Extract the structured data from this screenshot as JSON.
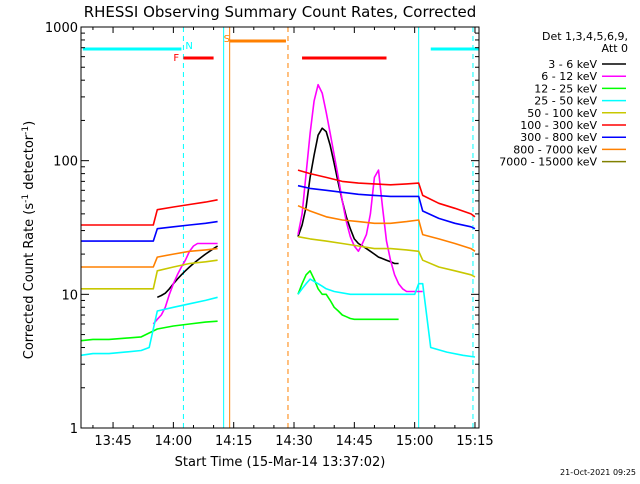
{
  "chart_data": {
    "type": "line",
    "title": "RHESSI Observing Summary Count Rates, Corrected",
    "xlabel": "Start Time (15-Mar-14 13:37:02)",
    "ylabel_main": "Corrected Count Rate (s",
    "ylabel_sup1": "-1",
    "ylabel_mid": " detector",
    "ylabel_sup2": "-1",
    "ylabel_end": ")",
    "y_scale": "log",
    "ylim": [
      1,
      1000
    ],
    "xlim": [
      37.03,
      136.0
    ],
    "x_units": "minutes after 13:00 UT",
    "x_ticks": [
      {
        "value": 45,
        "label": "13:45"
      },
      {
        "value": 60,
        "label": "14:00"
      },
      {
        "value": 75,
        "label": "14:15"
      },
      {
        "value": 90,
        "label": "14:30"
      },
      {
        "value": 105,
        "label": "14:45"
      },
      {
        "value": 120,
        "label": "15:00"
      },
      {
        "value": 135,
        "label": "15:15"
      }
    ],
    "y_ticks": [
      {
        "value": 1,
        "label": "1"
      },
      {
        "value": 10,
        "label": "10"
      },
      {
        "value": 100,
        "label": "100"
      },
      {
        "value": 1000,
        "label": "1000"
      }
    ],
    "legend": {
      "position": "right",
      "header_line1": "Det 1,3,4,5,6,9,",
      "header_line2": "Att 0"
    },
    "series": [
      {
        "name": "3 - 6 keV",
        "color": "#000000",
        "points": [
          [
            56,
            9.5
          ],
          [
            57,
            9.8
          ],
          [
            58,
            10.2
          ],
          [
            59,
            11
          ],
          [
            60,
            12
          ],
          [
            61,
            13
          ],
          [
            62,
            14
          ],
          [
            63,
            15
          ],
          [
            64,
            16
          ],
          [
            65,
            17
          ],
          [
            66,
            18
          ],
          [
            67,
            19
          ],
          [
            68,
            20
          ],
          [
            69,
            21
          ],
          [
            70,
            22
          ],
          [
            71,
            23
          ],
          [
            91,
            27
          ],
          [
            92,
            33
          ],
          [
            93,
            45
          ],
          [
            94,
            75
          ],
          [
            95,
            110
          ],
          [
            96,
            155
          ],
          [
            97,
            175
          ],
          [
            98,
            165
          ],
          [
            99,
            130
          ],
          [
            100,
            95
          ],
          [
            101,
            68
          ],
          [
            102,
            50
          ],
          [
            103,
            38
          ],
          [
            104,
            31
          ],
          [
            105,
            26
          ],
          [
            106,
            24
          ],
          [
            107,
            23
          ],
          [
            108,
            22
          ],
          [
            109,
            21
          ],
          [
            110,
            20
          ],
          [
            111,
            19
          ],
          [
            112,
            18.5
          ],
          [
            113,
            18
          ],
          [
            114,
            17.5
          ],
          [
            115,
            17
          ],
          [
            116,
            17
          ]
        ]
      },
      {
        "name": "6 - 12 keV",
        "color": "#ff00ff",
        "points": [
          [
            55,
            6
          ],
          [
            56,
            6.5
          ],
          [
            57,
            7
          ],
          [
            58,
            8
          ],
          [
            59,
            10
          ],
          [
            60,
            12
          ],
          [
            61,
            14
          ],
          [
            62,
            16
          ],
          [
            63,
            18
          ],
          [
            64,
            21
          ],
          [
            65,
            23
          ],
          [
            66,
            24
          ],
          [
            67,
            24
          ],
          [
            68,
            24
          ],
          [
            69,
            24
          ],
          [
            70,
            24
          ],
          [
            71,
            24
          ],
          [
            91,
            28
          ],
          [
            92,
            40
          ],
          [
            93,
            80
          ],
          [
            94,
            160
          ],
          [
            95,
            280
          ],
          [
            96,
            370
          ],
          [
            97,
            320
          ],
          [
            98,
            230
          ],
          [
            99,
            160
          ],
          [
            100,
            110
          ],
          [
            101,
            75
          ],
          [
            102,
            50
          ],
          [
            103,
            35
          ],
          [
            104,
            27
          ],
          [
            105,
            23
          ],
          [
            106,
            21
          ],
          [
            107,
            24
          ],
          [
            108,
            28
          ],
          [
            109,
            40
          ],
          [
            110,
            75
          ],
          [
            111,
            85
          ],
          [
            112,
            45
          ],
          [
            113,
            25
          ],
          [
            114,
            18
          ],
          [
            115,
            14
          ],
          [
            116,
            12
          ],
          [
            117,
            11
          ],
          [
            118,
            10.5
          ],
          [
            119,
            10.5
          ],
          [
            120,
            10.5
          ],
          [
            121,
            10.5
          ],
          [
            122,
            10.5
          ]
        ]
      },
      {
        "name": "12 - 25 keV",
        "color": "#00ff00",
        "points": [
          [
            37,
            4.5
          ],
          [
            40,
            4.6
          ],
          [
            44,
            4.6
          ],
          [
            48,
            4.7
          ],
          [
            52,
            4.8
          ],
          [
            56,
            5.5
          ],
          [
            60,
            5.8
          ],
          [
            64,
            6.0
          ],
          [
            68,
            6.2
          ],
          [
            71,
            6.3
          ],
          [
            91,
            10
          ],
          [
            92,
            12
          ],
          [
            93,
            14
          ],
          [
            94,
            15
          ],
          [
            95,
            13
          ],
          [
            96,
            11
          ],
          [
            97,
            10
          ],
          [
            98,
            10
          ],
          [
            99,
            9
          ],
          [
            100,
            8
          ],
          [
            101,
            7.5
          ],
          [
            102,
            7
          ],
          [
            103,
            6.8
          ],
          [
            104,
            6.6
          ],
          [
            105,
            6.5
          ],
          [
            106,
            6.5
          ],
          [
            107,
            6.5
          ],
          [
            108,
            6.5
          ],
          [
            109,
            6.5
          ],
          [
            110,
            6.5
          ],
          [
            111,
            6.5
          ],
          [
            112,
            6.5
          ],
          [
            113,
            6.5
          ],
          [
            114,
            6.5
          ],
          [
            115,
            6.5
          ],
          [
            116,
            6.5
          ]
        ]
      },
      {
        "name": "25 - 50 keV",
        "color": "#00ffff",
        "points": [
          [
            37,
            3.5
          ],
          [
            40,
            3.6
          ],
          [
            44,
            3.6
          ],
          [
            48,
            3.7
          ],
          [
            52,
            3.8
          ],
          [
            54,
            4.0
          ],
          [
            56,
            7.5
          ],
          [
            60,
            8
          ],
          [
            64,
            8.5
          ],
          [
            68,
            9
          ],
          [
            71,
            9.5
          ],
          [
            91,
            10
          ],
          [
            92,
            11
          ],
          [
            93,
            12
          ],
          [
            94,
            13
          ],
          [
            95,
            12.5
          ],
          [
            96,
            12
          ],
          [
            97,
            11.5
          ],
          [
            98,
            11
          ],
          [
            100,
            10.5
          ],
          [
            104,
            10
          ],
          [
            108,
            10
          ],
          [
            112,
            10
          ],
          [
            116,
            10
          ],
          [
            119,
            10
          ],
          [
            120,
            10
          ],
          [
            121,
            12
          ],
          [
            122,
            12
          ],
          [
            124,
            4
          ],
          [
            128,
            3.7
          ],
          [
            132,
            3.5
          ],
          [
            135,
            3.4
          ]
        ]
      },
      {
        "name": "50 - 100 keV",
        "color": "#c8c800",
        "points": [
          [
            37,
            11
          ],
          [
            40,
            11
          ],
          [
            44,
            11
          ],
          [
            48,
            11
          ],
          [
            52,
            11
          ],
          [
            55,
            11
          ],
          [
            56,
            15
          ],
          [
            60,
            16
          ],
          [
            64,
            17
          ],
          [
            68,
            17.5
          ],
          [
            71,
            18
          ],
          [
            91,
            27
          ],
          [
            94,
            26
          ],
          [
            98,
            25
          ],
          [
            102,
            24
          ],
          [
            106,
            23
          ],
          [
            110,
            22
          ],
          [
            114,
            22
          ],
          [
            118,
            21.5
          ],
          [
            121,
            21
          ],
          [
            122,
            18
          ],
          [
            126,
            16
          ],
          [
            130,
            15
          ],
          [
            134,
            14
          ],
          [
            135,
            13.5
          ]
        ]
      },
      {
        "name": "100 - 300 keV",
        "color": "#ff0000",
        "points": [
          [
            37,
            33
          ],
          [
            40,
            33
          ],
          [
            44,
            33
          ],
          [
            48,
            33
          ],
          [
            52,
            33
          ],
          [
            55,
            33
          ],
          [
            56,
            43
          ],
          [
            60,
            45
          ],
          [
            64,
            47
          ],
          [
            68,
            49
          ],
          [
            71,
            51
          ],
          [
            91,
            85
          ],
          [
            94,
            80
          ],
          [
            98,
            75
          ],
          [
            102,
            70
          ],
          [
            106,
            68
          ],
          [
            110,
            67
          ],
          [
            114,
            66
          ],
          [
            118,
            67
          ],
          [
            121,
            68
          ],
          [
            122,
            55
          ],
          [
            126,
            48
          ],
          [
            130,
            44
          ],
          [
            134,
            40
          ],
          [
            135,
            38
          ]
        ]
      },
      {
        "name": "300 - 800 keV",
        "color": "#0000ff",
        "points": [
          [
            37,
            25
          ],
          [
            40,
            25
          ],
          [
            44,
            25
          ],
          [
            48,
            25
          ],
          [
            52,
            25
          ],
          [
            55,
            25
          ],
          [
            56,
            31
          ],
          [
            60,
            32
          ],
          [
            64,
            33
          ],
          [
            68,
            34
          ],
          [
            71,
            35
          ],
          [
            91,
            65
          ],
          [
            94,
            62
          ],
          [
            98,
            60
          ],
          [
            102,
            58
          ],
          [
            106,
            56
          ],
          [
            110,
            55
          ],
          [
            114,
            54
          ],
          [
            118,
            54
          ],
          [
            121,
            54
          ],
          [
            122,
            42
          ],
          [
            126,
            37
          ],
          [
            130,
            34
          ],
          [
            134,
            32
          ],
          [
            135,
            31
          ]
        ]
      },
      {
        "name": "800 - 7000 keV",
        "color": "#ff8000",
        "points": [
          [
            37,
            16
          ],
          [
            40,
            16
          ],
          [
            44,
            16
          ],
          [
            48,
            16
          ],
          [
            52,
            16
          ],
          [
            55,
            16
          ],
          [
            56,
            19
          ],
          [
            60,
            20
          ],
          [
            64,
            21
          ],
          [
            68,
            21.5
          ],
          [
            71,
            22
          ],
          [
            91,
            46
          ],
          [
            94,
            42
          ],
          [
            98,
            38
          ],
          [
            102,
            36
          ],
          [
            106,
            35
          ],
          [
            110,
            34
          ],
          [
            114,
            34
          ],
          [
            118,
            35
          ],
          [
            121,
            36
          ],
          [
            122,
            28
          ],
          [
            126,
            26
          ],
          [
            130,
            24
          ],
          [
            134,
            22
          ],
          [
            135,
            21
          ]
        ]
      },
      {
        "name": "7000 - 15000 keV",
        "color": "#808000",
        "points": []
      }
    ],
    "annotations": {
      "night_bar": {
        "label": "N",
        "color": "#00ffff",
        "segments": [
          [
            37.5,
            62
          ],
          [
            124,
            136
          ]
        ]
      },
      "flare_bar": {
        "label": "F",
        "color": "#ff0000",
        "segments": [
          [
            62.5,
            70
          ],
          [
            92,
            113
          ]
        ]
      },
      "saa_bar": {
        "label": "S",
        "color": "#ff8000",
        "segments": [
          [
            74,
            88
          ]
        ]
      },
      "vertical_markers": [
        {
          "x": 62.5,
          "color": "#00ffff",
          "style": "dashed"
        },
        {
          "x": 72.5,
          "color": "#00ffff",
          "style": "solid"
        },
        {
          "x": 74.0,
          "color": "#ff8000",
          "style": "solid"
        },
        {
          "x": 88.5,
          "color": "#ff8000",
          "style": "dashed"
        },
        {
          "x": 121.0,
          "color": "#00ffff",
          "style": "solid"
        },
        {
          "x": 134.5,
          "color": "#00ffff",
          "style": "dashed"
        }
      ]
    },
    "footer_date": "21-Oct-2021 09:25"
  }
}
